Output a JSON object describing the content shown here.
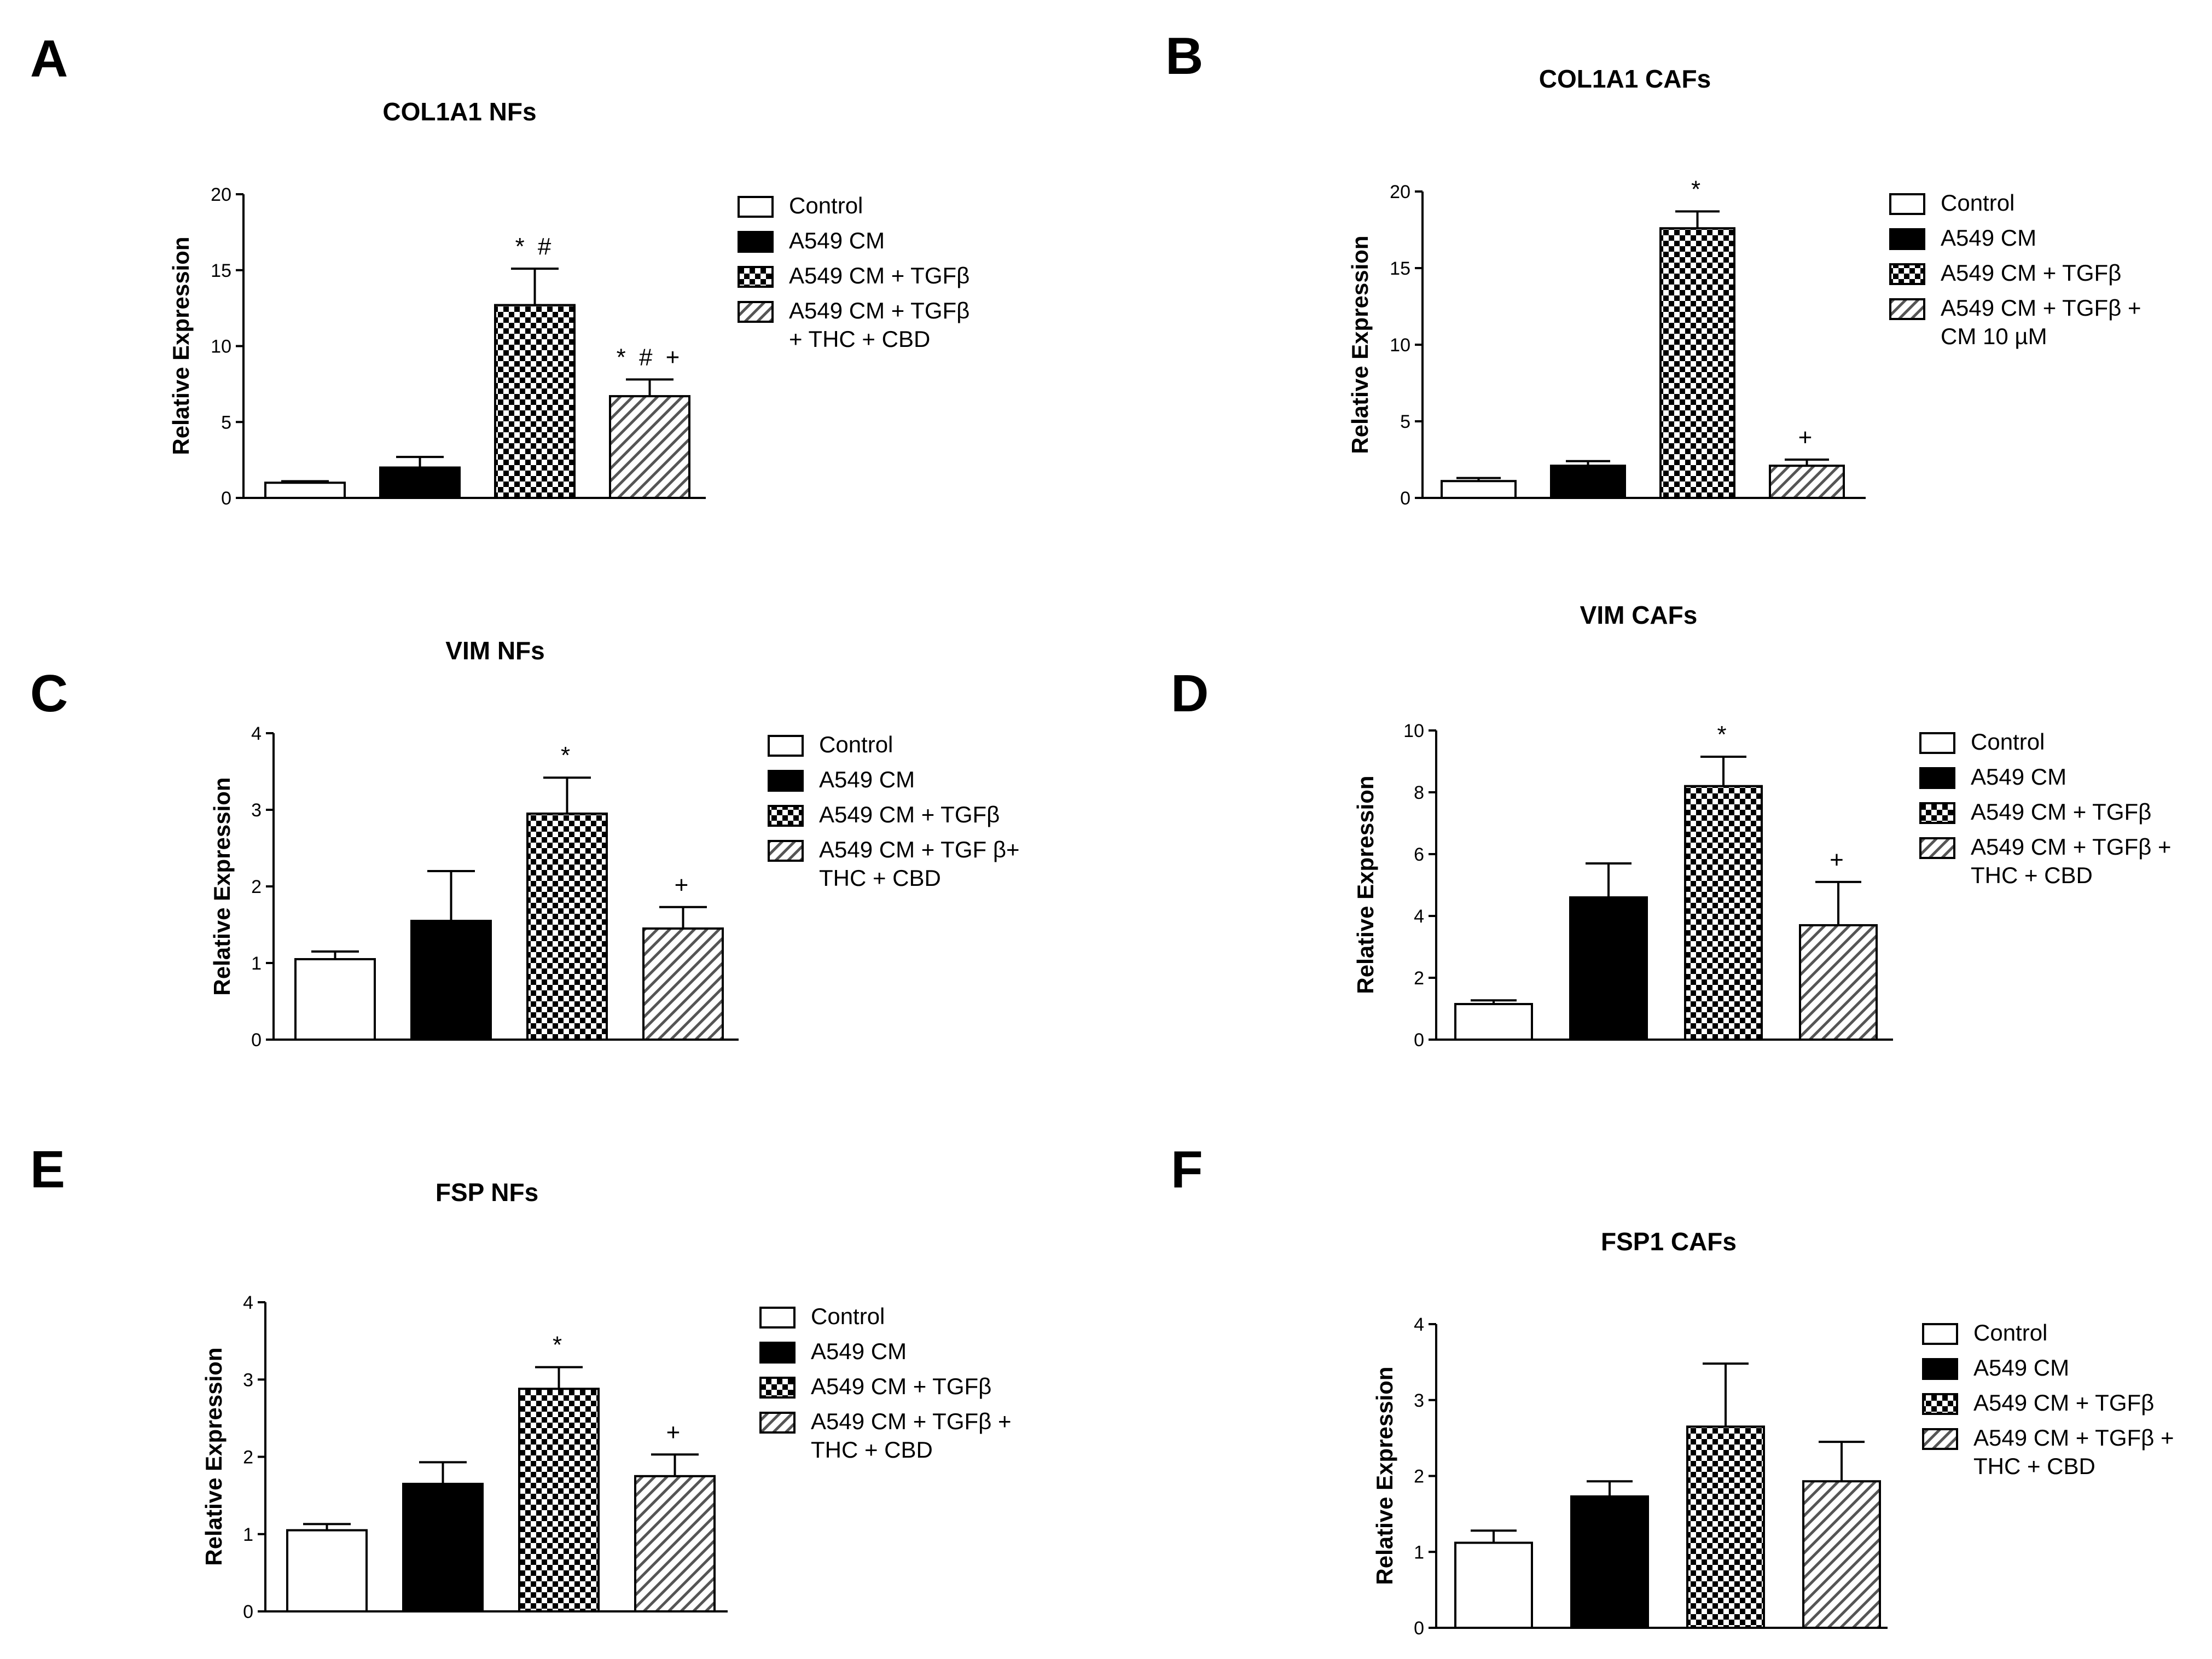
{
  "figure": {
    "domain": "multi-panel bar chart figure"
  },
  "legend_patterns": {
    "Control": "white",
    "A549 CM": "black",
    "A549 CM + TGFβ": "checker",
    "treatment": "hatch"
  },
  "chart_data": [
    {
      "panel": "A",
      "type": "bar",
      "title": "COL1A1 NFs",
      "ylabel": "Relative Expression",
      "xlabel": "",
      "ylim": [
        0,
        20
      ],
      "yticks": [
        0,
        5,
        10,
        15,
        20
      ],
      "categories": [
        "Control",
        "A549 CM",
        "A549 CM + TGFβ",
        "A549 CM + TGFβ + THC + CBD"
      ],
      "values": [
        1.0,
        2.0,
        12.7,
        6.7
      ],
      "errors": [
        0.1,
        0.7,
        2.4,
        1.1
      ],
      "patterns": [
        "white",
        "black",
        "checker",
        "hatch"
      ],
      "annotations": [
        "",
        "",
        "*#",
        "*#+"
      ],
      "legend": [
        [
          "Control"
        ],
        [
          "A549 CM"
        ],
        [
          "A549 CM + TGFβ"
        ],
        [
          "A549 CM + TGFβ",
          "+ THC + CBD"
        ]
      ]
    },
    {
      "panel": "B",
      "type": "bar",
      "title": "COL1A1 CAFs",
      "ylabel": "Relative Expression",
      "xlabel": "",
      "ylim": [
        0,
        20
      ],
      "yticks": [
        0,
        5,
        10,
        15,
        20
      ],
      "categories": [
        "Control",
        "A549 CM",
        "A549 CM + TGFβ",
        "A549 CM + TGFβ + CM 10 µM"
      ],
      "values": [
        1.1,
        2.1,
        17.6,
        2.1
      ],
      "errors": [
        0.2,
        0.3,
        1.1,
        0.4
      ],
      "patterns": [
        "white",
        "black",
        "checker",
        "hatch"
      ],
      "annotations": [
        "",
        "",
        "*",
        "+"
      ],
      "legend": [
        [
          "Control"
        ],
        [
          "A549 CM"
        ],
        [
          "A549 CM + TGFβ"
        ],
        [
          "A549 CM + TGFβ +",
          "CM 10 µM"
        ]
      ]
    },
    {
      "panel": "C",
      "type": "bar",
      "title": "VIM NFs",
      "ylabel": "Relative Expression",
      "xlabel": "",
      "ylim": [
        0,
        4
      ],
      "yticks": [
        0,
        1,
        2,
        3,
        4
      ],
      "categories": [
        "Control",
        "A549 CM",
        "A549 CM + TGFβ",
        "A549 CM + TGF β+ THC + CBD"
      ],
      "values": [
        1.05,
        1.55,
        2.95,
        1.45
      ],
      "errors": [
        0.1,
        0.65,
        0.47,
        0.28
      ],
      "patterns": [
        "white",
        "black",
        "checker",
        "hatch"
      ],
      "annotations": [
        "",
        "",
        "*",
        "+"
      ],
      "legend": [
        [
          "Control"
        ],
        [
          "A549 CM"
        ],
        [
          "A549 CM + TGFβ"
        ],
        [
          "A549 CM + TGF β+",
          "THC + CBD"
        ]
      ]
    },
    {
      "panel": "D",
      "type": "bar",
      "title": "VIM CAFs",
      "ylabel": "Relative Expression",
      "xlabel": "",
      "ylim": [
        0,
        10
      ],
      "yticks": [
        0,
        2,
        4,
        6,
        8,
        10
      ],
      "categories": [
        "Control",
        "A549 CM",
        "A549 CM + TGFβ",
        "A549 CM + TGFβ + THC + CBD"
      ],
      "values": [
        1.15,
        4.6,
        8.2,
        3.7
      ],
      "errors": [
        0.12,
        1.1,
        0.95,
        1.4
      ],
      "patterns": [
        "white",
        "black",
        "checker",
        "hatch"
      ],
      "annotations": [
        "",
        "",
        "*",
        "+"
      ],
      "legend": [
        [
          "Control"
        ],
        [
          "A549 CM"
        ],
        [
          "A549 CM + TGFβ"
        ],
        [
          "A549 CM + TGFβ +",
          "THC + CBD"
        ]
      ]
    },
    {
      "panel": "E",
      "type": "bar",
      "title": "FSP NFs",
      "ylabel": "Relative Expression",
      "xlabel": "",
      "ylim": [
        0,
        4
      ],
      "yticks": [
        0,
        1,
        2,
        3,
        4
      ],
      "categories": [
        "Control",
        "A549 CM",
        "A549 CM + TGFβ",
        "A549 CM + TGFβ + THC + CBD"
      ],
      "values": [
        1.05,
        1.65,
        2.88,
        1.75
      ],
      "errors": [
        0.08,
        0.28,
        0.28,
        0.28
      ],
      "patterns": [
        "white",
        "black",
        "checker",
        "hatch"
      ],
      "annotations": [
        "",
        "",
        "*",
        "+"
      ],
      "legend": [
        [
          "Control"
        ],
        [
          "A549 CM"
        ],
        [
          "A549 CM + TGFβ"
        ],
        [
          "A549 CM + TGFβ +",
          "THC + CBD"
        ]
      ]
    },
    {
      "panel": "F",
      "type": "bar",
      "title": "FSP1 CAFs",
      "ylabel": "Relative Expression",
      "xlabel": "",
      "ylim": [
        0,
        4
      ],
      "yticks": [
        0,
        1,
        2,
        3,
        4
      ],
      "categories": [
        "Control",
        "A549 CM",
        "A549 CM + TGFβ",
        "A549 CM + TGFβ + THC + CBD"
      ],
      "values": [
        1.12,
        1.73,
        2.65,
        1.93
      ],
      "errors": [
        0.16,
        0.2,
        0.83,
        0.52
      ],
      "patterns": [
        "white",
        "black",
        "checker",
        "hatch"
      ],
      "annotations": [
        "",
        "",
        "",
        ""
      ],
      "legend": [
        [
          "Control"
        ],
        [
          "A549 CM"
        ],
        [
          "A549  CM + TGFβ"
        ],
        [
          "A549 CM + TGFβ +",
          "THC + CBD"
        ]
      ]
    }
  ]
}
